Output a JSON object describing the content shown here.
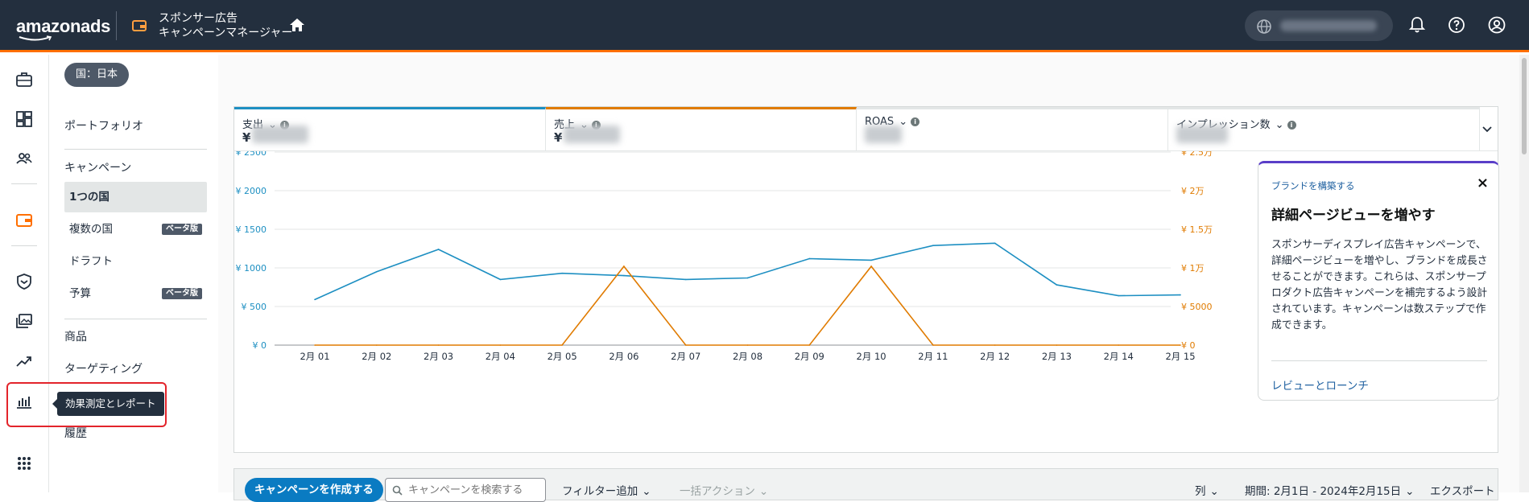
{
  "topbar": {
    "logo_text": "amazonads",
    "app_title_line1": "スポンサー広告",
    "app_title_line2": "キャンペーンマネージャー",
    "icons": [
      "wallet-icon",
      "home-icon",
      "globe-icon",
      "bell-icon",
      "help-icon",
      "account-icon"
    ],
    "accent_color": "#ff6f00",
    "bg_color": "#232f3e"
  },
  "country_filter": "国：日本",
  "subnav": {
    "portfolio": "ポートフォリオ",
    "campaign_header": "キャンペーン",
    "campaign_items": [
      {
        "label": "1つの国",
        "badge": ""
      },
      {
        "label": "複数の国",
        "badge": "ベータ版"
      },
      {
        "label": "ドラフト",
        "badge": ""
      },
      {
        "label": "予算",
        "badge": "ベータ版"
      }
    ],
    "products": "商品",
    "targeting": "ターゲティング",
    "history": "履歴"
  },
  "tooltip": "効果測定とレポート",
  "metrics": [
    {
      "label": "支出",
      "value_prefix": "¥",
      "color": "#1d8fc2"
    },
    {
      "label": "売上",
      "value_prefix": "¥",
      "color": "#e07b00"
    },
    {
      "label": "ROAS",
      "value_prefix": "",
      "color": ""
    },
    {
      "label": "インプレッション数",
      "value_prefix": "",
      "color": ""
    }
  ],
  "chart_data": {
    "type": "line",
    "categories": [
      "2月 01",
      "2月 02",
      "2月 03",
      "2月 04",
      "2月 05",
      "2月 06",
      "2月 07",
      "2月 08",
      "2月 09",
      "2月 10",
      "2月 11",
      "2月 12",
      "2月 13",
      "2月 14",
      "2月 15"
    ],
    "series": [
      {
        "name": "支出",
        "axis": "left",
        "color": "#1d8fc2",
        "values": [
          590,
          950,
          1240,
          850,
          930,
          900,
          850,
          870,
          1120,
          1100,
          1290,
          1320,
          780,
          640,
          650
        ]
      },
      {
        "name": "売上",
        "axis": "right",
        "color": "#e07b00",
        "values": [
          0,
          0,
          0,
          0,
          0,
          10200,
          0,
          0,
          0,
          10200,
          0,
          0,
          0,
          0,
          0
        ]
      }
    ],
    "left_ticks": [
      "¥ 0",
      "¥ 500",
      "¥ 1000",
      "¥ 1500",
      "¥ 2000",
      "¥ 2500"
    ],
    "right_ticks": [
      "¥ 0",
      "¥ 5000",
      "¥ 1万",
      "¥ 1.5万",
      "¥ 2万",
      "¥ 2.5万"
    ],
    "ylim_left": [
      0,
      2500
    ],
    "ylim_right": [
      0,
      25000
    ],
    "grid": true
  },
  "promo": {
    "kicker": "ブランドを構築する",
    "title": "詳細ページビューを増やす",
    "body": "スポンサーディスプレイ広告キャンペーンで、詳細ページビューを増やし、ブランドを成長させることができます。これらは、スポンサープロダクト広告キャンペーンを補完するよう設計されています。キャンペーンは数ステップで作成できます。",
    "link": "レビューとローンチ",
    "close": "×"
  },
  "toolbar": {
    "create_button": "キャンペーンを作成する",
    "search_placeholder": "キャンペーンを検索する",
    "add_filter": "フィルター追加",
    "bulk_actions": "一括アクション",
    "columns": "列",
    "date_range": "期間: 2月1日 - 2024年2月15日",
    "export": "エクスポート"
  }
}
